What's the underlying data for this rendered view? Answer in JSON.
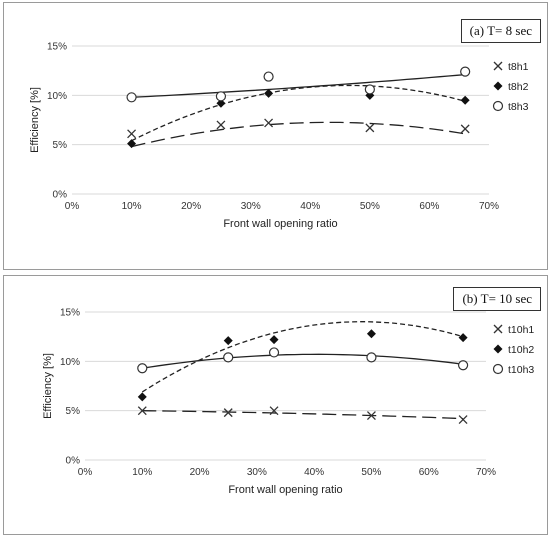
{
  "chart_data": [
    {
      "type": "scatter",
      "title": "(a) T= 8 sec",
      "xlabel": "Front wall opening ratio",
      "ylabel": "Efficiency [%]",
      "xlim": [
        0,
        70
      ],
      "ylim": [
        0,
        15
      ],
      "x_ticks": [
        "0%",
        "10%",
        "20%",
        "30%",
        "40%",
        "50%",
        "60%",
        "70%"
      ],
      "y_ticks": [
        "0%",
        "5%",
        "10%",
        "15%"
      ],
      "legend_position": "right",
      "series": [
        {
          "name": "t8h1",
          "marker": "x",
          "line": "long-dash",
          "x": [
            10,
            25,
            33,
            50,
            66
          ],
          "y": [
            6.1,
            7.0,
            7.2,
            6.7,
            6.6
          ],
          "trend": [
            4.8,
            7.2,
            6.1
          ]
        },
        {
          "name": "t8h2",
          "marker": "diamond",
          "line": "short-dash",
          "x": [
            10,
            25,
            33,
            50,
            66
          ],
          "y": [
            5.1,
            9.2,
            10.2,
            10.0,
            9.5
          ],
          "trend": [
            5.4,
            10.7,
            9.4
          ]
        },
        {
          "name": "t8h3",
          "marker": "circle",
          "line": "solid",
          "x": [
            10,
            25,
            33,
            50,
            66
          ],
          "y": [
            9.8,
            9.9,
            11.9,
            10.6,
            12.4
          ],
          "trend": [
            9.8,
            10.8,
            12.1
          ]
        }
      ]
    },
    {
      "type": "scatter",
      "title": "(b) T= 10 sec",
      "xlabel": "Front wall opening ratio",
      "ylabel": "Efficiency [%]",
      "xlim": [
        0,
        70
      ],
      "ylim": [
        0,
        15
      ],
      "x_ticks": [
        "0%",
        "10%",
        "20%",
        "30%",
        "40%",
        "50%",
        "60%",
        "70%"
      ],
      "y_ticks": [
        "0%",
        "5%",
        "10%",
        "15%"
      ],
      "legend_position": "right",
      "series": [
        {
          "name": "t10h1",
          "marker": "x",
          "line": "long-dash",
          "x": [
            10,
            25,
            33,
            50,
            66
          ],
          "y": [
            5.0,
            4.8,
            5.0,
            4.5,
            4.1
          ],
          "trend": [
            5.0,
            4.7,
            4.2
          ]
        },
        {
          "name": "t10h2",
          "marker": "diamond",
          "line": "short-dash",
          "x": [
            10,
            25,
            33,
            50,
            66
          ],
          "y": [
            6.4,
            12.1,
            12.2,
            12.8,
            12.4
          ],
          "trend": [
            6.9,
            13.5,
            12.5
          ]
        },
        {
          "name": "t10h3",
          "marker": "circle",
          "line": "solid",
          "x": [
            10,
            25,
            33,
            50,
            66
          ],
          "y": [
            9.3,
            10.4,
            10.9,
            10.4,
            9.6
          ],
          "trend": [
            9.3,
            10.7,
            9.7
          ]
        }
      ]
    }
  ]
}
